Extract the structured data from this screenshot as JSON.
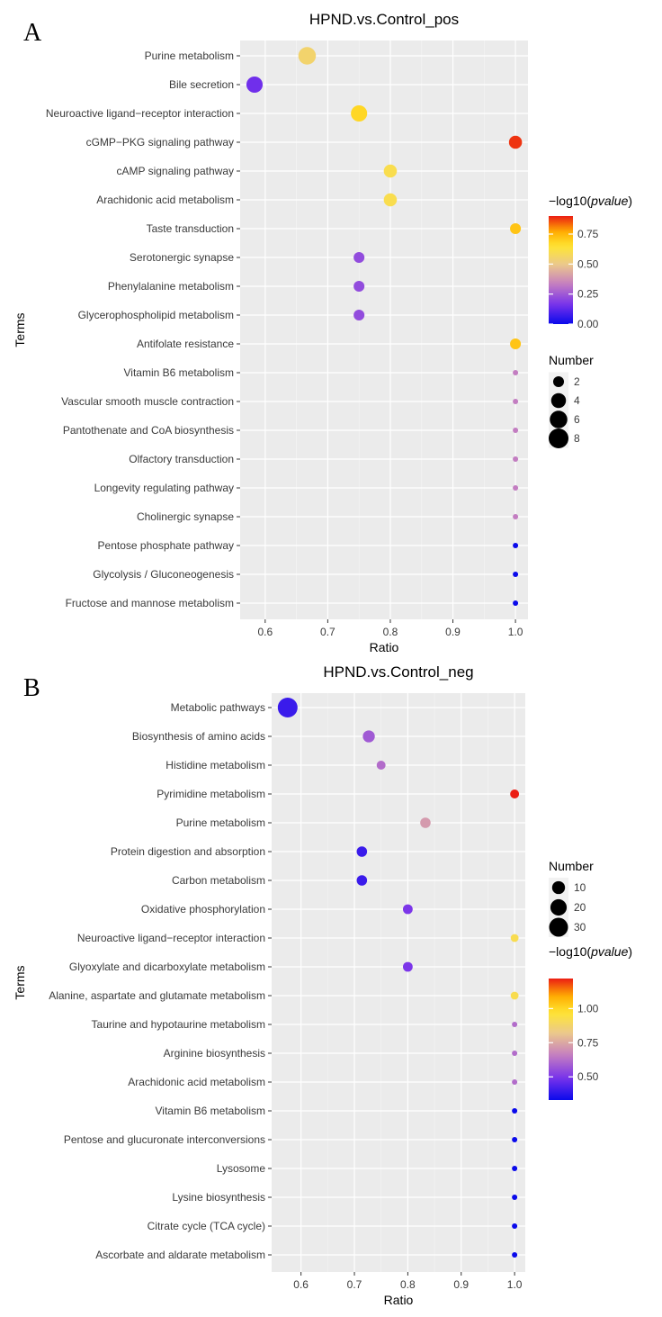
{
  "chart_data": [
    {
      "panel": "A",
      "type": "scatter",
      "title": "HPND.vs.Control_pos",
      "xlabel": "Ratio",
      "ylabel": "Terms",
      "xlim": [
        0.56,
        1.02
      ],
      "xticks": [
        0.6,
        0.7,
        0.8,
        0.9,
        1.0
      ],
      "xtick_labels": [
        "0.6",
        "0.7",
        "0.8",
        "0.9",
        "1.0"
      ],
      "grid": true,
      "color_scale": [
        0.0,
        0.9
      ],
      "size_scale": [
        1,
        8
      ],
      "points": [
        {
          "term": "Purine metabolism",
          "ratio": 0.667,
          "pvalue": 0.55,
          "number": 6
        },
        {
          "term": "Bile secretion",
          "ratio": 0.583,
          "pvalue": 0.15,
          "number": 5
        },
        {
          "term": "Neuroactive ligand−receptor interaction",
          "ratio": 0.75,
          "pvalue": 0.68,
          "number": 5
        },
        {
          "term": "cGMP−PKG signaling pathway",
          "ratio": 1.0,
          "pvalue": 0.88,
          "number": 3
        },
        {
          "term": "cAMP signaling pathway",
          "ratio": 0.8,
          "pvalue": 0.6,
          "number": 3
        },
        {
          "term": "Arachidonic acid metabolism",
          "ratio": 0.8,
          "pvalue": 0.6,
          "number": 3
        },
        {
          "term": "Taste transduction",
          "ratio": 1.0,
          "pvalue": 0.72,
          "number": 2
        },
        {
          "term": "Serotonergic synapse",
          "ratio": 0.75,
          "pvalue": 0.22,
          "number": 2
        },
        {
          "term": "Phenylalanine metabolism",
          "ratio": 0.75,
          "pvalue": 0.22,
          "number": 2
        },
        {
          "term": "Glycerophospholipid metabolism",
          "ratio": 0.75,
          "pvalue": 0.22,
          "number": 2
        },
        {
          "term": "Antifolate resistance",
          "ratio": 1.0,
          "pvalue": 0.72,
          "number": 2
        },
        {
          "term": "Vitamin B6 metabolism",
          "ratio": 1.0,
          "pvalue": 0.33,
          "number": 1
        },
        {
          "term": "Vascular smooth muscle contraction",
          "ratio": 1.0,
          "pvalue": 0.33,
          "number": 1
        },
        {
          "term": "Pantothenate and CoA biosynthesis",
          "ratio": 1.0,
          "pvalue": 0.33,
          "number": 1
        },
        {
          "term": "Olfactory transduction",
          "ratio": 1.0,
          "pvalue": 0.33,
          "number": 1
        },
        {
          "term": "Longevity regulating pathway",
          "ratio": 1.0,
          "pvalue": 0.33,
          "number": 1
        },
        {
          "term": "Cholinergic synapse",
          "ratio": 1.0,
          "pvalue": 0.33,
          "number": 1
        },
        {
          "term": "Pentose phosphate pathway",
          "ratio": 1.0,
          "pvalue": 0.0,
          "number": 0.3
        },
        {
          "term": "Glycolysis / Gluconeogenesis",
          "ratio": 1.0,
          "pvalue": 0.0,
          "number": 0.3
        },
        {
          "term": "Fructose and mannose metabolism",
          "ratio": 1.0,
          "pvalue": 0.0,
          "number": 0.3
        }
      ],
      "color_legend": {
        "title_prefix": "−log10(",
        "title_italic": "pvalue",
        "title_suffix": ")",
        "ticks": [
          0.75,
          0.5,
          0.25,
          0.0
        ],
        "tick_labels": [
          "0.75",
          "0.50",
          "0.25",
          "0.00"
        ],
        "range": [
          0.0,
          0.9
        ]
      },
      "size_legend": {
        "title": "Number",
        "values": [
          2,
          4,
          6,
          8
        ],
        "labels": [
          "2",
          "4",
          "6",
          "8"
        ]
      }
    },
    {
      "panel": "B",
      "type": "scatter",
      "title": "HPND.vs.Control_neg",
      "xlabel": "Ratio",
      "ylabel": "Terms",
      "xlim": [
        0.545,
        1.02
      ],
      "xticks": [
        0.6,
        0.7,
        0.8,
        0.9,
        1.0
      ],
      "xtick_labels": [
        "0.6",
        "0.7",
        "0.8",
        "0.9",
        "1.0"
      ],
      "grid": true,
      "color_scale": [
        0.33,
        1.22
      ],
      "size_scale": [
        1,
        34
      ],
      "points": [
        {
          "term": "Metabolic pathways",
          "ratio": 0.575,
          "pvalue": 0.4,
          "number": 34
        },
        {
          "term": "Biosynthesis of amino acids",
          "ratio": 0.727,
          "pvalue": 0.58,
          "number": 8
        },
        {
          "term": "Histidine metabolism",
          "ratio": 0.75,
          "pvalue": 0.62,
          "number": 3
        },
        {
          "term": "Pyrimidine metabolism",
          "ratio": 1.0,
          "pvalue": 1.22,
          "number": 3
        },
        {
          "term": "Purine metabolism",
          "ratio": 0.833,
          "pvalue": 0.72,
          "number": 5
        },
        {
          "term": "Protein digestion and absorption",
          "ratio": 0.714,
          "pvalue": 0.4,
          "number": 5
        },
        {
          "term": "Carbon metabolism",
          "ratio": 0.714,
          "pvalue": 0.4,
          "number": 5
        },
        {
          "term": "Oxidative phosphorylation",
          "ratio": 0.8,
          "pvalue": 0.5,
          "number": 4
        },
        {
          "term": "Neuroactive ligand−receptor interaction",
          "ratio": 1.0,
          "pvalue": 0.92,
          "number": 2
        },
        {
          "term": "Glyoxylate and dicarboxylate metabolism",
          "ratio": 0.8,
          "pvalue": 0.5,
          "number": 4
        },
        {
          "term": "Alanine, aspartate and glutamate metabolism",
          "ratio": 1.0,
          "pvalue": 0.92,
          "number": 2
        },
        {
          "term": "Taurine and hypotaurine metabolism",
          "ratio": 1.0,
          "pvalue": 0.62,
          "number": 1
        },
        {
          "term": "Arginine biosynthesis",
          "ratio": 1.0,
          "pvalue": 0.62,
          "number": 1
        },
        {
          "term": "Arachidonic acid metabolism",
          "ratio": 1.0,
          "pvalue": 0.62,
          "number": 1
        },
        {
          "term": "Vitamin B6 metabolism",
          "ratio": 1.0,
          "pvalue": 0.33,
          "number": 1
        },
        {
          "term": "Pentose and glucuronate interconversions",
          "ratio": 1.0,
          "pvalue": 0.33,
          "number": 1
        },
        {
          "term": "Lysosome",
          "ratio": 1.0,
          "pvalue": 0.33,
          "number": 1
        },
        {
          "term": "Lysine biosynthesis",
          "ratio": 1.0,
          "pvalue": 0.33,
          "number": 1
        },
        {
          "term": "Citrate cycle (TCA cycle)",
          "ratio": 1.0,
          "pvalue": 0.33,
          "number": 1
        },
        {
          "term": "Ascorbate and aldarate metabolism",
          "ratio": 1.0,
          "pvalue": 0.33,
          "number": 1
        }
      ],
      "color_legend": {
        "title_prefix": "−log10(",
        "title_italic": "pvalue",
        "title_suffix": ")",
        "ticks": [
          1.0,
          0.75,
          0.5
        ],
        "tick_labels": [
          "1.00",
          "0.75",
          "0.50"
        ],
        "range": [
          0.33,
          1.22
        ]
      },
      "size_legend": {
        "title": "Number",
        "values": [
          10,
          20,
          30
        ],
        "labels": [
          "10",
          "20",
          "30"
        ]
      }
    }
  ]
}
